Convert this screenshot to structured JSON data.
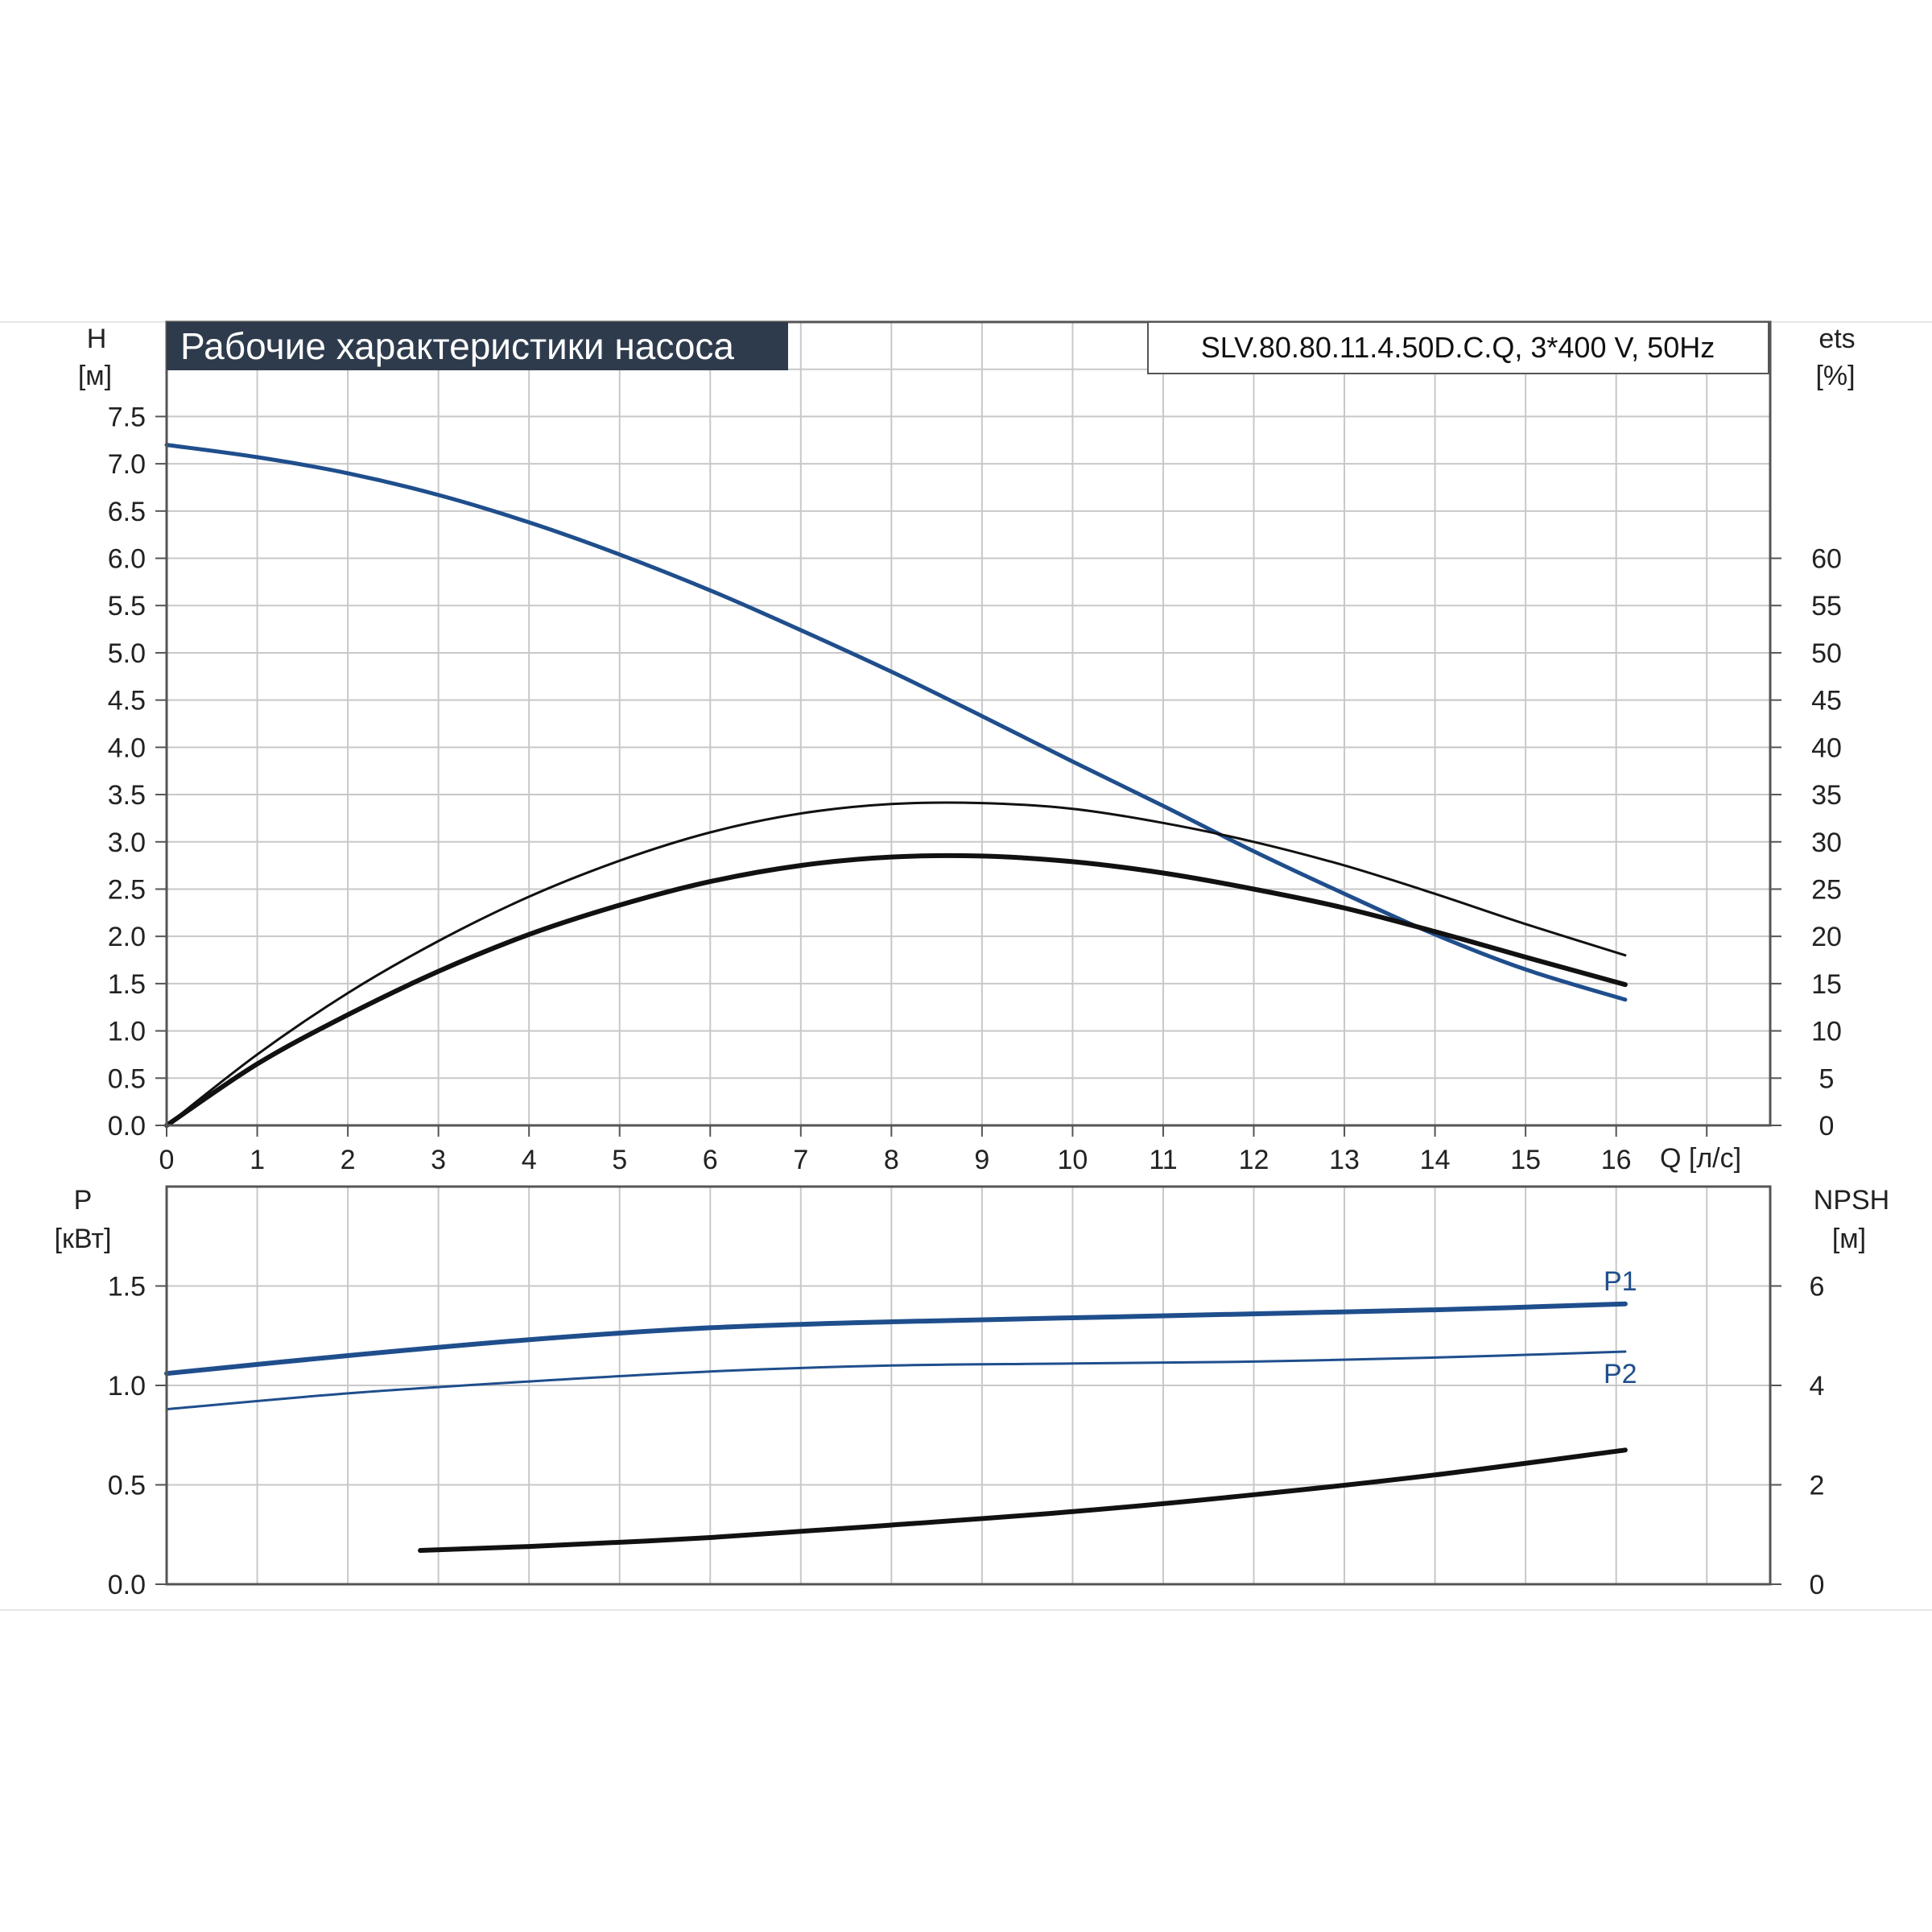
{
  "title": "Рабочие характеристики насоса",
  "model": "SLV.80.80.11.4.50D.C.Q, 3*400 V, 50Hz",
  "colors": {
    "blue": "#1f4e8c",
    "black": "#111111",
    "grid": "#c8c8c8",
    "title_bg": "#2e3b4c",
    "title_fg": "#ffffff"
  },
  "chart_data": [
    {
      "type": "line",
      "name": "head-efficiency",
      "xlabel": "Q [л/с]",
      "ylabel": "H",
      "ylabel_unit": "[м]",
      "y2label": "ets",
      "y2label_unit": "[%]",
      "xlim": [
        0,
        17.7
      ],
      "ylim": [
        0,
        8.5
      ],
      "y2lim": [
        0,
        85
      ],
      "x_ticks": [
        "0",
        "1",
        "2",
        "3",
        "4",
        "5",
        "6",
        "7",
        "8",
        "9",
        "10",
        "11",
        "12",
        "13",
        "14",
        "15",
        "16"
      ],
      "y_ticks": [
        "0.0",
        "0.5",
        "1.0",
        "1.5",
        "2.0",
        "2.5",
        "3.0",
        "3.5",
        "4.0",
        "4.5",
        "5.0",
        "5.5",
        "6.0",
        "6.5",
        "7.0",
        "7.5"
      ],
      "y2_ticks": [
        "0",
        "5",
        "10",
        "15",
        "20",
        "25",
        "30",
        "35",
        "40",
        "45",
        "50",
        "55",
        "60"
      ],
      "grid": true,
      "series": [
        {
          "id": "H",
          "axis": "left",
          "color": "blue",
          "width": 5,
          "x": [
            0,
            1,
            2,
            3,
            4,
            5,
            6,
            7,
            8,
            9,
            10,
            11,
            12,
            13,
            14,
            15,
            16.1
          ],
          "y": [
            7.2,
            7.07,
            6.9,
            6.67,
            6.38,
            6.04,
            5.66,
            5.24,
            4.8,
            4.33,
            3.85,
            3.38,
            2.9,
            2.45,
            2.02,
            1.65,
            1.33
          ]
        },
        {
          "id": "eta-thin",
          "axis": "right",
          "color": "black",
          "width": 3,
          "x": [
            0,
            1,
            2,
            3,
            4,
            5,
            6,
            7,
            8,
            9,
            10,
            11,
            12,
            13,
            14,
            15,
            16.1
          ],
          "y": [
            0,
            7.5,
            14,
            19.5,
            24.2,
            28,
            31,
            33,
            34,
            34.1,
            33.5,
            32,
            30,
            27.5,
            24.5,
            21.3,
            18
          ]
        },
        {
          "id": "eta-thick",
          "axis": "right",
          "color": "black",
          "width": 6,
          "x": [
            0,
            1,
            2,
            3,
            4,
            5,
            6,
            7,
            8,
            9,
            10,
            11,
            12,
            13,
            14,
            15,
            16.1
          ],
          "y": [
            0,
            6.5,
            11.7,
            16.3,
            20.2,
            23.3,
            25.8,
            27.5,
            28.4,
            28.5,
            27.9,
            26.7,
            25,
            23,
            20.5,
            17.8,
            14.9
          ]
        }
      ]
    },
    {
      "type": "line",
      "name": "power-npsh",
      "ylabel": "P",
      "ylabel_unit": "[кВт]",
      "y2label": "NPSH",
      "y2label_unit": "[м]",
      "xlim": [
        0,
        17.7
      ],
      "ylim": [
        0,
        2.0
      ],
      "y2lim": [
        0,
        8
      ],
      "y_ticks": [
        "0.0",
        "0.5",
        "1.0",
        "1.5"
      ],
      "y2_ticks": [
        "0",
        "2",
        "4",
        "6"
      ],
      "grid": true,
      "series": [
        {
          "id": "P1",
          "name": "P1",
          "axis": "left",
          "color": "blue",
          "width": 6,
          "x": [
            0,
            2,
            4,
            6,
            8,
            10,
            12,
            14,
            16.1
          ],
          "y": [
            1.06,
            1.15,
            1.23,
            1.29,
            1.32,
            1.34,
            1.36,
            1.38,
            1.41
          ]
        },
        {
          "id": "P2",
          "name": "P2",
          "axis": "left",
          "color": "blue",
          "width": 3,
          "x": [
            0,
            2,
            4,
            6,
            8,
            10,
            12,
            14,
            16.1
          ],
          "y": [
            0.88,
            0.96,
            1.02,
            1.07,
            1.1,
            1.11,
            1.12,
            1.14,
            1.17
          ]
        },
        {
          "id": "NPSH",
          "axis": "right",
          "color": "black",
          "width": 6,
          "x": [
            2.8,
            4,
            6,
            8,
            10,
            12,
            14,
            16.1
          ],
          "y": [
            0.68,
            0.76,
            0.94,
            1.19,
            1.46,
            1.8,
            2.2,
            2.7
          ]
        }
      ]
    }
  ]
}
